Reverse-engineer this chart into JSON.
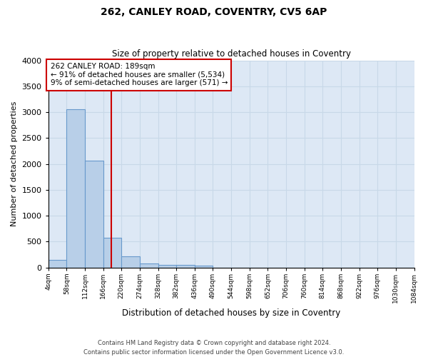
{
  "title": "262, CANLEY ROAD, COVENTRY, CV5 6AP",
  "subtitle": "Size of property relative to detached houses in Coventry",
  "xlabel": "Distribution of detached houses by size in Coventry",
  "ylabel": "Number of detached properties",
  "footer_line1": "Contains HM Land Registry data © Crown copyright and database right 2024.",
  "footer_line2": "Contains public sector information licensed under the Open Government Licence v3.0.",
  "annotation_line1": "262 CANLEY ROAD: 189sqm",
  "annotation_line2": "← 91% of detached houses are smaller (5,534)",
  "annotation_line3": "9% of semi-detached houses are larger (571) →",
  "bins": [
    4,
    58,
    112,
    166,
    220,
    274,
    328,
    382,
    436,
    490,
    544,
    598,
    652,
    706,
    760,
    814,
    868,
    922,
    976,
    1030,
    1084
  ],
  "bin_labels": [
    "4sqm",
    "58sqm",
    "112sqm",
    "166sqm",
    "220sqm",
    "274sqm",
    "328sqm",
    "382sqm",
    "436sqm",
    "490sqm",
    "544sqm",
    "598sqm",
    "652sqm",
    "706sqm",
    "760sqm",
    "814sqm",
    "868sqm",
    "922sqm",
    "976sqm",
    "1030sqm",
    "1084sqm"
  ],
  "counts": [
    150,
    3060,
    2070,
    570,
    210,
    75,
    55,
    45,
    40,
    0,
    0,
    0,
    0,
    0,
    0,
    0,
    0,
    0,
    0,
    0
  ],
  "bar_color": "#b8cfe8",
  "bar_edge_color": "#6899cc",
  "vline_color": "#cc0000",
  "vline_x": 189,
  "annotation_box_color": "#cc0000",
  "grid_color": "#c8d8e8",
  "bg_color": "#dde8f5",
  "ylim": [
    0,
    4000
  ],
  "yticks": [
    0,
    500,
    1000,
    1500,
    2000,
    2500,
    3000,
    3500,
    4000
  ]
}
